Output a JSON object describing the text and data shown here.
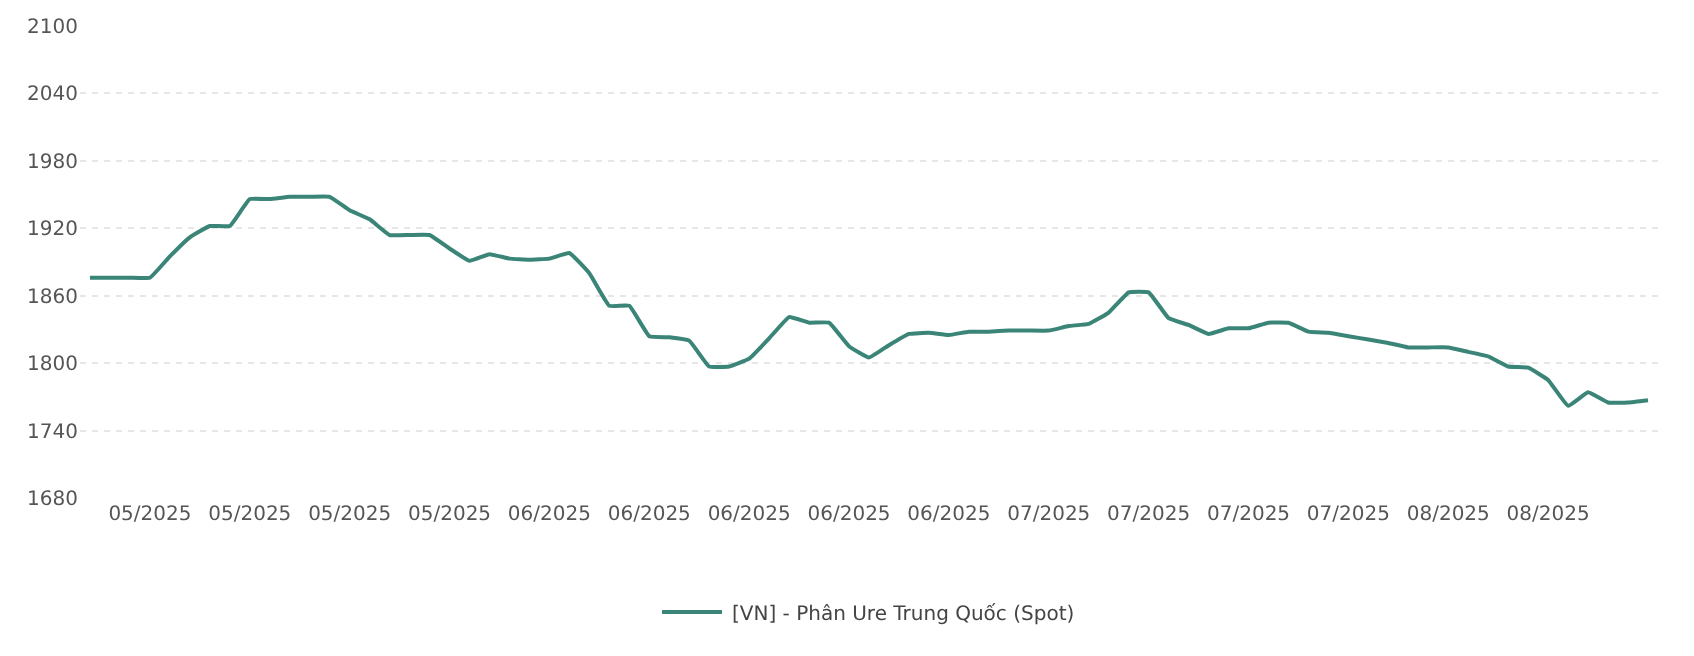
{
  "chart_data": {
    "type": "line",
    "categories": [
      null,
      null,
      null,
      "05/2025",
      null,
      null,
      null,
      null,
      "05/2025",
      null,
      null,
      null,
      null,
      "05/2025",
      null,
      null,
      null,
      null,
      "05/2025",
      null,
      null,
      null,
      null,
      "06/2025",
      null,
      null,
      null,
      null,
      "06/2025",
      null,
      null,
      null,
      null,
      "06/2025",
      null,
      null,
      null,
      null,
      "06/2025",
      null,
      null,
      null,
      null,
      "06/2025",
      null,
      null,
      null,
      null,
      "07/2025",
      null,
      null,
      null,
      null,
      "07/2025",
      null,
      null,
      null,
      null,
      "07/2025",
      null,
      null,
      null,
      null,
      "07/2025",
      null,
      null,
      null,
      null,
      "08/2025",
      null,
      null,
      null,
      null,
      "08/2025",
      null,
      null,
      null,
      null,
      null
    ],
    "series": [
      {
        "name": "[VN] - Phân Ure Trung Quốc (Spot)",
        "color": "#3a8577",
        "values": [
          1876,
          1876,
          1876,
          1876,
          1895,
          1912,
          1922,
          1922,
          1946,
          1946,
          1948,
          1948,
          1948,
          1936,
          1928,
          1914,
          1914,
          1914,
          1902,
          1891,
          1897,
          1893,
          1892,
          1893,
          1898,
          1880,
          1851,
          1851,
          1824,
          1823,
          1820,
          1797,
          1797,
          1804,
          1822,
          1841,
          1836,
          1836,
          1815,
          1805,
          1816,
          1826,
          1827,
          1825,
          1828,
          1828,
          1829,
          1829,
          1829,
          1833,
          1835,
          1845,
          1863,
          1863,
          1840,
          1834,
          1826,
          1831,
          1831,
          1836,
          1836,
          1828,
          1827,
          1824,
          1821,
          1818,
          1814,
          1814,
          1814,
          1810,
          1806,
          1797,
          1796,
          1785,
          1762,
          1774,
          1765,
          1765,
          1767
        ]
      }
    ],
    "ylim": [
      1680,
      2100
    ],
    "yticks": [
      1680,
      1740,
      1800,
      1860,
      1920,
      1980,
      2040,
      2100
    ],
    "grid": "y",
    "legend": "bottom",
    "line_style": "solid"
  }
}
